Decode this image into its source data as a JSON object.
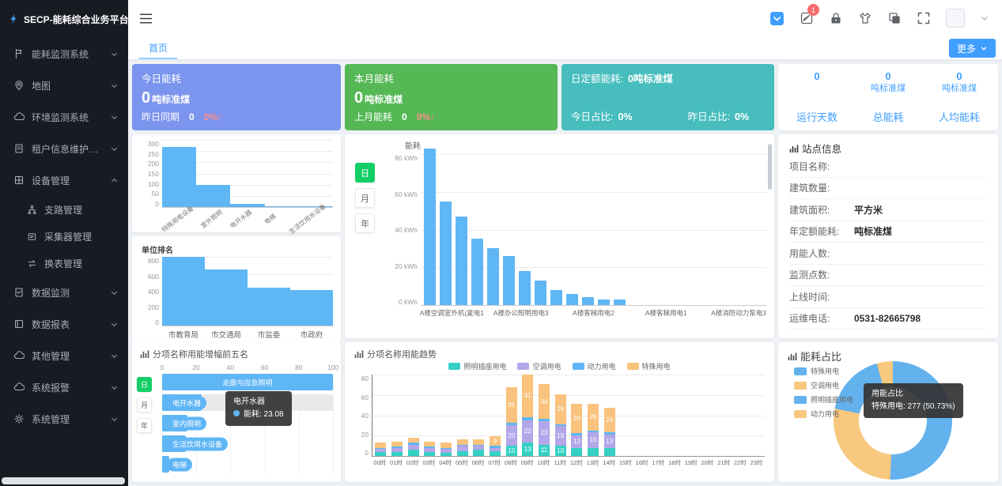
{
  "app": {
    "title": "SECP-能耗综合业务平台"
  },
  "topbar": {
    "notification_count": "1"
  },
  "tabbar": {
    "tabs": [
      {
        "label": "首页"
      }
    ],
    "more_label": "更多"
  },
  "sidebar": {
    "items": [
      {
        "label": "能耗监测系统",
        "icon": "flag",
        "expanded": false
      },
      {
        "label": "地图",
        "icon": "map-pin",
        "expanded": false
      },
      {
        "label": "环境监测系统",
        "icon": "cloud",
        "expanded": false
      },
      {
        "label": "租户信息维护管理",
        "icon": "doc",
        "expanded": false
      },
      {
        "label": "设备管理",
        "icon": "grid",
        "expanded": true,
        "children": [
          {
            "label": "支路管理",
            "icon": "branch"
          },
          {
            "label": "采集器管理",
            "icon": "collector"
          },
          {
            "label": "换表管理",
            "icon": "swap"
          }
        ]
      },
      {
        "label": "数据监测",
        "icon": "doc-data",
        "expanded": false
      },
      {
        "label": "数据报表",
        "icon": "book",
        "expanded": false
      },
      {
        "label": "其他管理",
        "icon": "cloud",
        "expanded": false
      },
      {
        "label": "系统报警",
        "icon": "cloud",
        "expanded": false
      },
      {
        "label": "系统管理",
        "icon": "gear",
        "expanded": false
      }
    ]
  },
  "cards": {
    "today": {
      "title": "今日能耗",
      "value": "0",
      "unit": "吨标准煤",
      "compare_label": "昨日同期",
      "compare_value": "0",
      "compare_delta": "0%↑",
      "bg": "#7b94ee"
    },
    "month": {
      "title": "本月能耗",
      "value": "0",
      "unit": "吨标准煤",
      "compare_label": "上月能耗",
      "compare_value": "0",
      "compare_delta": "0%↑",
      "bg": "#55b855"
    },
    "quota": {
      "line1_label": "日定额能耗:",
      "line1_value": "0吨标准煤",
      "today_label": "今日占比:",
      "today_value": "0%",
      "yesterday_label": "昨日占比:",
      "yesterday_value": "0%",
      "bg": "#47bdbd"
    },
    "summary": {
      "columns": [
        {
          "value": "0",
          "unit": "",
          "label": "运行天数"
        },
        {
          "value": "0",
          "unit": "吨标准煤",
          "label": "总能耗"
        },
        {
          "value": "0",
          "unit": "吨标准煤",
          "label": "人均能耗"
        }
      ]
    }
  },
  "site_info": {
    "title": "站点信息",
    "rows": [
      {
        "label": "项目名称:",
        "value": ""
      },
      {
        "label": "建筑数量:",
        "value": ""
      },
      {
        "label": "建筑面积:",
        "value": "平方米"
      },
      {
        "label": "年定额能耗:",
        "value": "吨标准煤"
      },
      {
        "label": "用能人数:",
        "value": ""
      },
      {
        "label": "监测点数:",
        "value": ""
      },
      {
        "label": "上线时间:",
        "value": ""
      },
      {
        "label": "运维电话:",
        "value": "0531-82665798"
      }
    ]
  },
  "time_controls": {
    "options": [
      "日",
      "月",
      "年"
    ],
    "active": "日",
    "active_color": "#13ce66"
  },
  "colors": {
    "accent": "#409eff",
    "bar_blue": "#5fb6f5",
    "delta_red": "#ff8a8a"
  },
  "chart_data": [
    {
      "id": "subitem_rank",
      "type": "bar",
      "categories": [
        "特殊用电设备",
        "室外照明",
        "电开水器",
        "电梯",
        "生活饮用水设备"
      ],
      "values": [
        270,
        100,
        15,
        5,
        5
      ],
      "yticks": [
        300,
        250,
        200,
        150,
        100,
        50,
        0
      ],
      "ylim": [
        0,
        300
      ],
      "bar_color": "#5fb6f5",
      "grid": true
    },
    {
      "id": "unit_rank",
      "type": "bar",
      "title": "单位排名",
      "categories": [
        "市教育局",
        "市交通局",
        "市监委",
        "市政府"
      ],
      "values": [
        800,
        650,
        440,
        410
      ],
      "yticks": [
        800,
        600,
        400,
        200,
        0
      ],
      "ylim": [
        0,
        800
      ],
      "bar_color": "#5fb6f5",
      "grid": true
    },
    {
      "id": "energy_daily",
      "type": "bar",
      "title": "能耗",
      "ylabel_unit": "kWh",
      "values": [
        83,
        55,
        47,
        35,
        30,
        26,
        18,
        13,
        8,
        6,
        4,
        3,
        3
      ],
      "x_labels": [
        "A楼空调室外机(夏电1",
        "A楼办公照明用电3",
        "A楼客梯用电2",
        "A楼客梯用电1",
        "A楼消防动力泵电3"
      ],
      "x_label_pos": [
        9,
        29,
        50,
        71,
        92
      ],
      "yticks": [
        "80 kWh",
        "60 kWh",
        "40 kWh",
        "20 kWh",
        "0 kWh"
      ],
      "ylim": [
        0,
        80
      ],
      "bar_color": "#5fb6f5",
      "grid": true
    },
    {
      "id": "increase_top5",
      "type": "hbar",
      "title": "分项名称用能增幅前五名",
      "xticks": [
        0,
        20,
        40,
        60,
        80,
        100
      ],
      "xlim": [
        0,
        100
      ],
      "bars": [
        {
          "label": "走廊与应急照明",
          "value": 100,
          "label_center": true
        },
        {
          "label": "电开水器",
          "value": 23.08,
          "hover": true
        },
        {
          "label": "室内照明",
          "value": 15
        },
        {
          "label": "生活饮用水设备",
          "value": 14
        },
        {
          "label": "电梯",
          "value": 4
        }
      ],
      "tooltip": {
        "title": "电开水器",
        "text": "能耗: 23.08"
      },
      "bar_color": "#5fb6f5",
      "grid": true
    },
    {
      "id": "trend",
      "type": "stacked_bar",
      "title": "分项名称用能趋势",
      "categories": [
        "00时",
        "01时",
        "02时",
        "03时",
        "04时",
        "05时",
        "06时",
        "07时",
        "08时",
        "09时",
        "10时",
        "11时",
        "12时",
        "13时",
        "14时",
        "15时",
        "16时",
        "17时",
        "18时",
        "19时",
        "20时",
        "21时",
        "22时",
        "23时"
      ],
      "series": [
        {
          "name": "照明插座用电",
          "color": "#35d1c5",
          "values": [
            4,
            4,
            6,
            4,
            3,
            5,
            6,
            5,
            10,
            13,
            11,
            10,
            8,
            8,
            8,
            0,
            0,
            0,
            0,
            0,
            0,
            0,
            0,
            0
          ]
        },
        {
          "name": "空调用电",
          "color": "#b3a6e9",
          "values": [
            3,
            4,
            5,
            4,
            4,
            5,
            4,
            3,
            20,
            22,
            23,
            19,
            12,
            15,
            13,
            0,
            0,
            0,
            0,
            0,
            0,
            0,
            0,
            0
          ]
        },
        {
          "name": "动力用电",
          "color": "#5fb6f5",
          "values": [
            1,
            1,
            2,
            1,
            1,
            1,
            1,
            2,
            2,
            3,
            2,
            2,
            2,
            2,
            2,
            0,
            0,
            0,
            0,
            0,
            0,
            0,
            0,
            0
          ]
        },
        {
          "name": "特殊用电",
          "color": "#f9c27d",
          "values": [
            5,
            5,
            5,
            5,
            5,
            5,
            5,
            9,
            35,
            41,
            34,
            29,
            29,
            26,
            24,
            0,
            0,
            0,
            0,
            0,
            0,
            0,
            0,
            0
          ]
        }
      ],
      "yticks": [
        80,
        60,
        40,
        20,
        0
      ],
      "ylim": [
        0,
        80
      ],
      "legend_position": "top"
    },
    {
      "id": "energy_ratio",
      "type": "pie",
      "title": "能耗占比",
      "slices": [
        {
          "name": "特殊用电",
          "value": 277,
          "percent": "50.73%",
          "color": "#63b2ee"
        },
        {
          "name": "空调用电",
          "value": 150,
          "color": "#f7c87e"
        },
        {
          "name": "照明插座用电",
          "value": 95,
          "color": "#63b2ee"
        },
        {
          "name": "动力用电",
          "value": 24,
          "color": "#f7c87e"
        }
      ],
      "tooltip": {
        "title": "用能占比",
        "text": "特殊用电: 277 (50.73%)"
      },
      "donut": true,
      "legend_position": "top-left"
    }
  ]
}
